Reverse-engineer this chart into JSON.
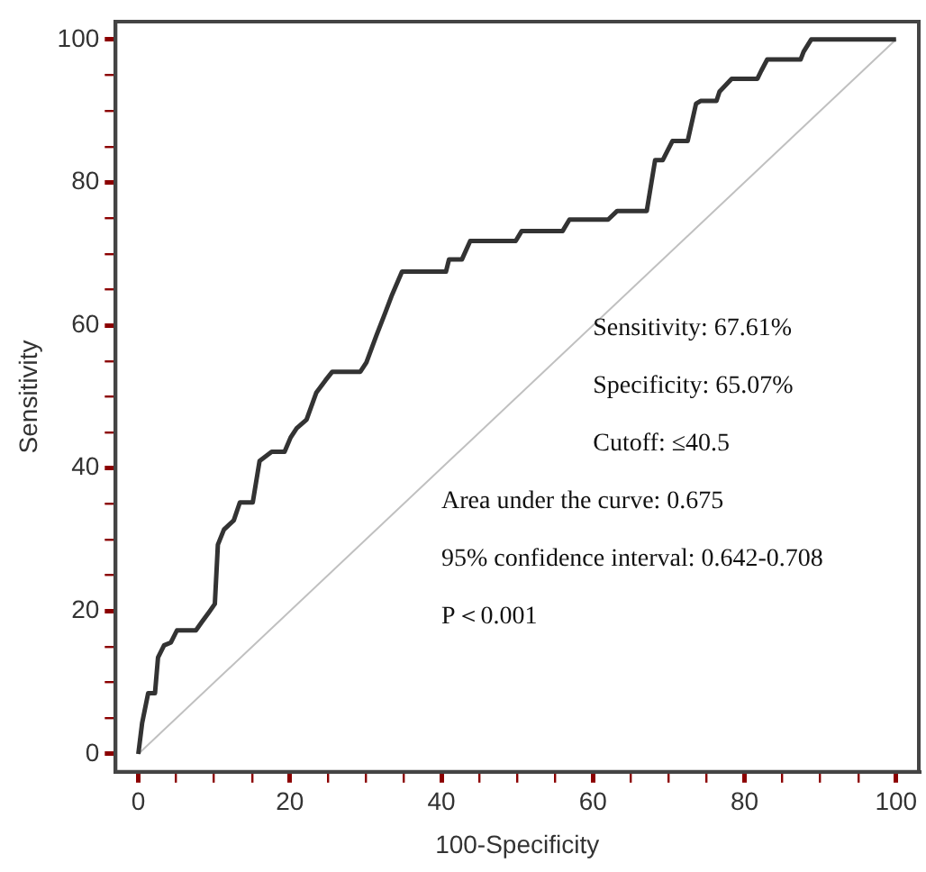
{
  "chart_data": {
    "type": "line",
    "xlabel": "100-Specificity",
    "ylabel": "Sensitivity",
    "xlim": [
      -3,
      103
    ],
    "ylim": [
      -2.5,
      102.5
    ],
    "xticks": [
      0,
      {
        "value": 5,
        "label": null
      },
      {
        "value": 10,
        "label": null
      },
      {
        "value": 15,
        "label": null
      },
      20,
      {
        "value": 25,
        "label": null
      },
      {
        "value": 30,
        "label": null
      },
      {
        "value": 35,
        "label": null
      },
      40,
      {
        "value": 45,
        "label": null
      },
      {
        "value": 50,
        "label": null
      },
      {
        "value": 55,
        "label": null
      },
      60,
      {
        "value": 65,
        "label": null
      },
      {
        "value": 70,
        "label": null
      },
      {
        "value": 75,
        "label": null
      },
      80,
      {
        "value": 85,
        "label": null
      },
      {
        "value": 90,
        "label": null
      },
      {
        "value": 95,
        "label": null
      },
      100
    ],
    "yticks": [
      0,
      {
        "value": 5,
        "label": null
      },
      {
        "value": 10,
        "label": null
      },
      {
        "value": 15,
        "label": null
      },
      20,
      {
        "value": 25,
        "label": null
      },
      {
        "value": 30,
        "label": null
      },
      {
        "value": 35,
        "label": null
      },
      40,
      {
        "value": 45,
        "label": null
      },
      {
        "value": 50,
        "label": null
      },
      {
        "value": 55,
        "label": null
      },
      60,
      {
        "value": 65,
        "label": null
      },
      {
        "value": 70,
        "label": null
      },
      {
        "value": 75,
        "label": null
      },
      80,
      {
        "value": 85,
        "label": null
      },
      {
        "value": 90,
        "label": null
      },
      {
        "value": 95,
        "label": null
      },
      100
    ],
    "grid": false,
    "legend": false,
    "marker": "none",
    "line_style": "solid",
    "series": [
      {
        "color": "#333333",
        "x": [
          0,
          0.5,
          1.3,
          2.2,
          2.6,
          3.4,
          4.3,
          5.1,
          7.6,
          8.4,
          9.3,
          10.1,
          10.5,
          11.3,
          12.6,
          13.4,
          15.1,
          16,
          17.6,
          19.3,
          20.1,
          20.9,
          22.2,
          23.5,
          24.7,
          25.6,
          29.3,
          30.1,
          31.4,
          32.6,
          33.5,
          34.8,
          40.6,
          41,
          42.7,
          43.8,
          49.8,
          50.6,
          56,
          56.9,
          62,
          63.2,
          67.1,
          68.2,
          69.2,
          70.5,
          72.5,
          73.6,
          74.2,
          76.3,
          76.7,
          78.3,
          81.7,
          82.2,
          83,
          87.4,
          87.8,
          88.8,
          100
        ],
        "values": [
          0,
          4.3,
          8.5,
          8.5,
          13.5,
          15.2,
          15.6,
          17.3,
          17.3,
          18.5,
          19.8,
          21,
          29.3,
          31.4,
          32.7,
          35.2,
          35.2,
          41,
          42.3,
          42.3,
          44.3,
          45.6,
          46.8,
          50.6,
          52.3,
          53.5,
          53.5,
          54.8,
          58.5,
          61.8,
          64.3,
          67.5,
          67.5,
          69.2,
          69.2,
          71.8,
          71.8,
          73.2,
          73.2,
          74.8,
          74.8,
          76,
          76,
          83.1,
          83.1,
          85.8,
          85.8,
          91,
          91.4,
          91.4,
          92.7,
          94.5,
          94.5,
          95.6,
          97.2,
          97.2,
          98.3,
          100,
          100
        ]
      },
      {
        "color": "#c0c0c0",
        "x": [
          0,
          100
        ],
        "values": [
          0,
          100
        ]
      }
    ],
    "annotations": [
      "Sensitivity: 67.61%",
      "Specificity: 65.07%",
      "Cutoff: ≤40.5",
      "Area under the curve: 0.675",
      "95% confidence interval: 0.642-0.708",
      "P＜0.001"
    ]
  }
}
